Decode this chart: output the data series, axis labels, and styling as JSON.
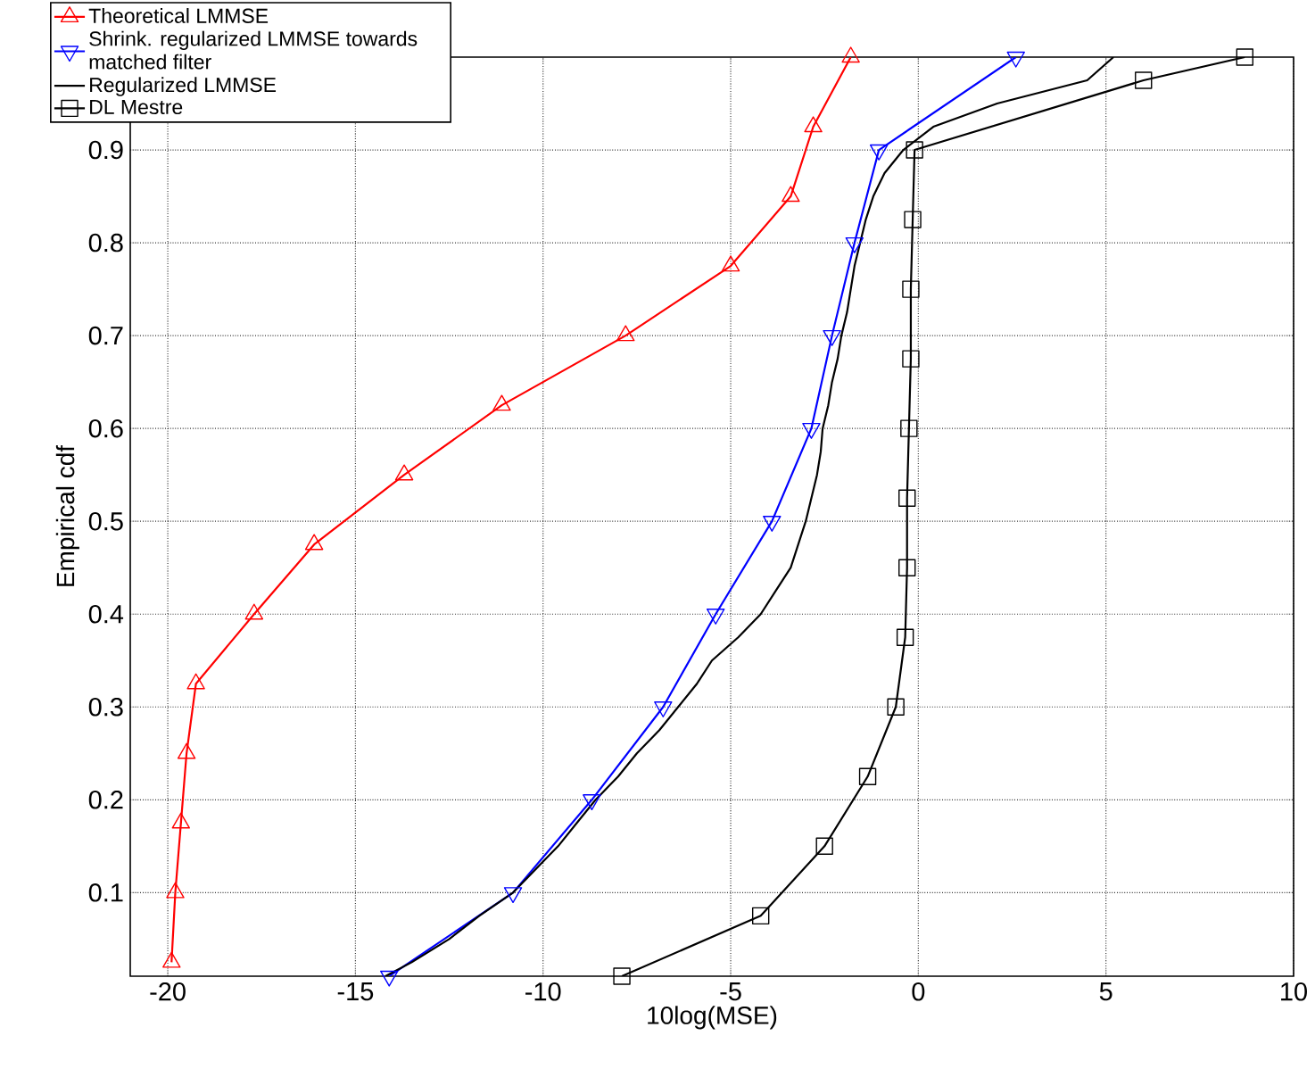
{
  "chart_data": {
    "type": "line",
    "xlabel": "10log(MSE)",
    "ylabel": "Empirical cdf",
    "xlim": [
      -21,
      10
    ],
    "ylim": [
      0.01,
      1
    ],
    "xticks": [
      -20,
      -15,
      -10,
      -5,
      0,
      5,
      10
    ],
    "yticks": [
      0.1,
      0.2,
      0.3,
      0.4,
      0.5,
      0.6,
      0.7,
      0.8,
      0.9
    ],
    "grid": true,
    "legend": "top left",
    "line_style": "solid",
    "series": [
      {
        "name": "Theoretical LMMSE",
        "color": "#ff0000",
        "marker": "triangle",
        "values": [
          0.025,
          0.1,
          0.175,
          0.25,
          0.325,
          0.4,
          0.475,
          0.55,
          0.625,
          0.7,
          0.775,
          0.85,
          0.925,
          1.0
        ],
        "x": [
          -19.9,
          -19.8,
          -19.65,
          -19.5,
          -19.25,
          -17.7,
          -16.1,
          -13.7,
          -11.1,
          -7.8,
          -5.0,
          -3.4,
          -2.8,
          -1.8
        ]
      },
      {
        "name": "Shrink. regularized LMMSE towards matched filter",
        "color": "#0000ff",
        "marker": "triangle-down",
        "values": [
          0.01,
          0.1,
          0.2,
          0.3,
          0.4,
          0.5,
          0.6,
          0.7,
          0.8,
          0.9,
          1.0
        ],
        "x": [
          -14.1,
          -10.8,
          -8.7,
          -6.8,
          -5.4,
          -3.9,
          -2.85,
          -2.3,
          -1.7,
          -1.05,
          2.6
        ]
      },
      {
        "name": "Regularized LMMSE",
        "color": "#000000",
        "marker": "none",
        "values": [
          0.01,
          0.025,
          0.05,
          0.075,
          0.1,
          0.125,
          0.15,
          0.175,
          0.2,
          0.225,
          0.25,
          0.275,
          0.3,
          0.325,
          0.35,
          0.375,
          0.4,
          0.425,
          0.45,
          0.475,
          0.5,
          0.525,
          0.55,
          0.575,
          0.6,
          0.625,
          0.65,
          0.675,
          0.7,
          0.725,
          0.75,
          0.775,
          0.8,
          0.825,
          0.85,
          0.875,
          0.9,
          0.925,
          0.95,
          0.975,
          1.0
        ],
        "x": [
          -14.2,
          -13.5,
          -12.5,
          -11.7,
          -10.8,
          -10.2,
          -9.6,
          -9.1,
          -8.6,
          -8.0,
          -7.5,
          -6.9,
          -6.4,
          -5.9,
          -5.5,
          -4.8,
          -4.2,
          -3.8,
          -3.4,
          -3.2,
          -3.0,
          -2.85,
          -2.7,
          -2.6,
          -2.55,
          -2.4,
          -2.3,
          -2.15,
          -2.05,
          -1.9,
          -1.8,
          -1.7,
          -1.55,
          -1.4,
          -1.2,
          -0.9,
          -0.4,
          0.4,
          2.1,
          4.5,
          5.2
        ]
      },
      {
        "name": "DL Mestre",
        "color": "#000000",
        "marker": "square",
        "values": [
          0.01,
          0.075,
          0.15,
          0.225,
          0.3,
          0.375,
          0.45,
          0.525,
          0.6,
          0.675,
          0.75,
          0.825,
          0.9,
          0.975,
          1.0
        ],
        "x": [
          -7.9,
          -4.2,
          -2.5,
          -1.35,
          -0.6,
          -0.35,
          -0.3,
          -0.3,
          -0.25,
          -0.2,
          -0.2,
          -0.15,
          -0.1,
          6.0,
          8.7
        ]
      }
    ]
  }
}
